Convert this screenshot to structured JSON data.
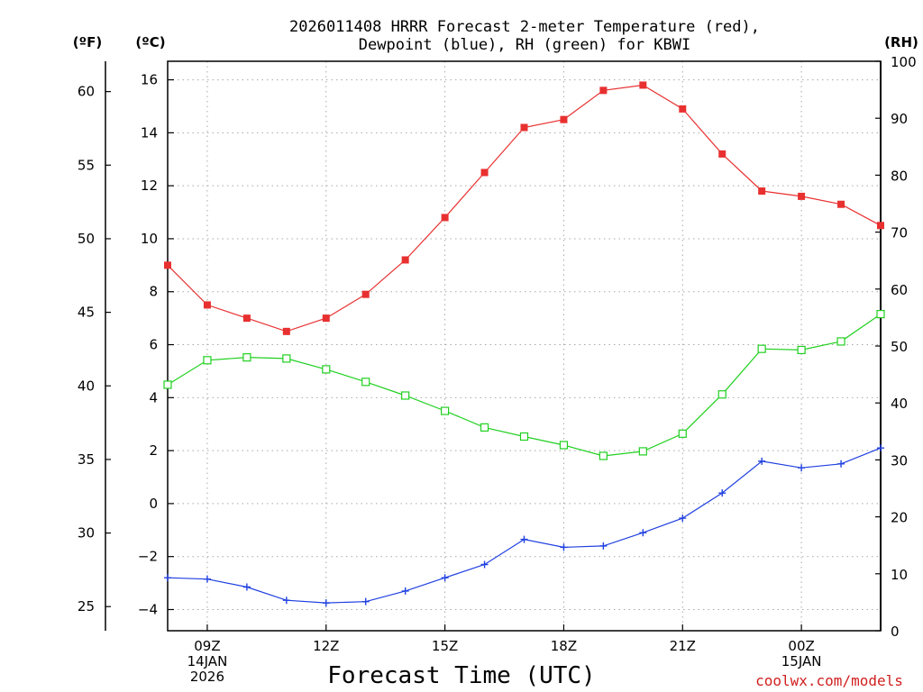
{
  "chart_data": {
    "type": "line",
    "title": [
      "2026011408 HRRR Forecast 2-meter Temperature (red),",
      "Dewpoint (blue), RH (green) for KBWI"
    ],
    "xlabel": "Forecast Time (UTC)",
    "credit": "coolwx.com/models",
    "x": [
      "08Z",
      "09Z",
      "10Z",
      "11Z",
      "12Z",
      "13Z",
      "14Z",
      "15Z",
      "16Z",
      "17Z",
      "18Z",
      "19Z",
      "20Z",
      "21Z",
      "22Z",
      "23Z",
      "00Z",
      "01Z",
      "02Z"
    ],
    "x_tick_labels": [
      {
        "hour": "09Z",
        "lines": [
          "09Z",
          "14JAN",
          "2026"
        ]
      },
      {
        "hour": "12Z",
        "lines": [
          "12Z"
        ]
      },
      {
        "hour": "15Z",
        "lines": [
          "15Z"
        ]
      },
      {
        "hour": "18Z",
        "lines": [
          "18Z"
        ]
      },
      {
        "hour": "21Z",
        "lines": [
          "21Z"
        ]
      },
      {
        "hour": "00Z",
        "lines": [
          "00Z",
          "15JAN"
        ]
      }
    ],
    "axes": {
      "celsius": {
        "label": "(ºC)",
        "range": [
          -4.8,
          16.7
        ],
        "ticks": [
          "16",
          "14",
          "12",
          "10",
          "8",
          "6",
          "4",
          "2",
          "0",
          "−2",
          "−4"
        ],
        "tick_values": [
          16,
          14,
          12,
          10,
          8,
          6,
          4,
          2,
          0,
          -2,
          -4
        ]
      },
      "fahrenheit": {
        "label": "(ºF)",
        "range": [
          23.36,
          62.06
        ],
        "ticks": [
          "60",
          "55",
          "50",
          "45",
          "40",
          "35",
          "30",
          "25"
        ],
        "tick_values": [
          60,
          55,
          50,
          45,
          40,
          35,
          30,
          25
        ]
      },
      "rh": {
        "label": "(RH)",
        "range": [
          0,
          100
        ],
        "ticks": [
          "100",
          "90",
          "80",
          "70",
          "60",
          "50",
          "40",
          "30",
          "20",
          "10",
          "0"
        ],
        "tick_values": [
          100,
          90,
          80,
          70,
          60,
          50,
          40,
          30,
          20,
          10,
          0
        ]
      }
    },
    "series": [
      {
        "name": "2-meter Temperature",
        "axis": "celsius",
        "color": "#e83030",
        "marker": "filled-square",
        "values": [
          9.0,
          7.5,
          7.0,
          6.5,
          7.0,
          7.9,
          9.2,
          10.8,
          12.5,
          14.2,
          14.5,
          15.6,
          15.8,
          14.9,
          13.2,
          11.8,
          11.6,
          11.3,
          10.5
        ]
      },
      {
        "name": "Dewpoint",
        "axis": "celsius",
        "color": "#2040e0",
        "marker": "plus",
        "values": [
          -2.8,
          -2.85,
          -3.15,
          -3.65,
          -3.75,
          -3.7,
          -3.3,
          -2.8,
          -2.3,
          -1.35,
          -1.65,
          -1.6,
          -1.1,
          -0.55,
          0.4,
          1.6,
          1.35,
          1.5,
          2.1
        ]
      },
      {
        "name": "RH",
        "axis": "rh",
        "color": "#20d020",
        "marker": "open-square",
        "values": [
          43.2,
          47.5,
          48.0,
          47.8,
          45.9,
          43.7,
          41.3,
          38.6,
          35.7,
          34.1,
          32.6,
          30.7,
          31.5,
          34.6,
          41.5,
          49.5,
          49.3,
          50.8,
          55.6
        ]
      }
    ]
  }
}
